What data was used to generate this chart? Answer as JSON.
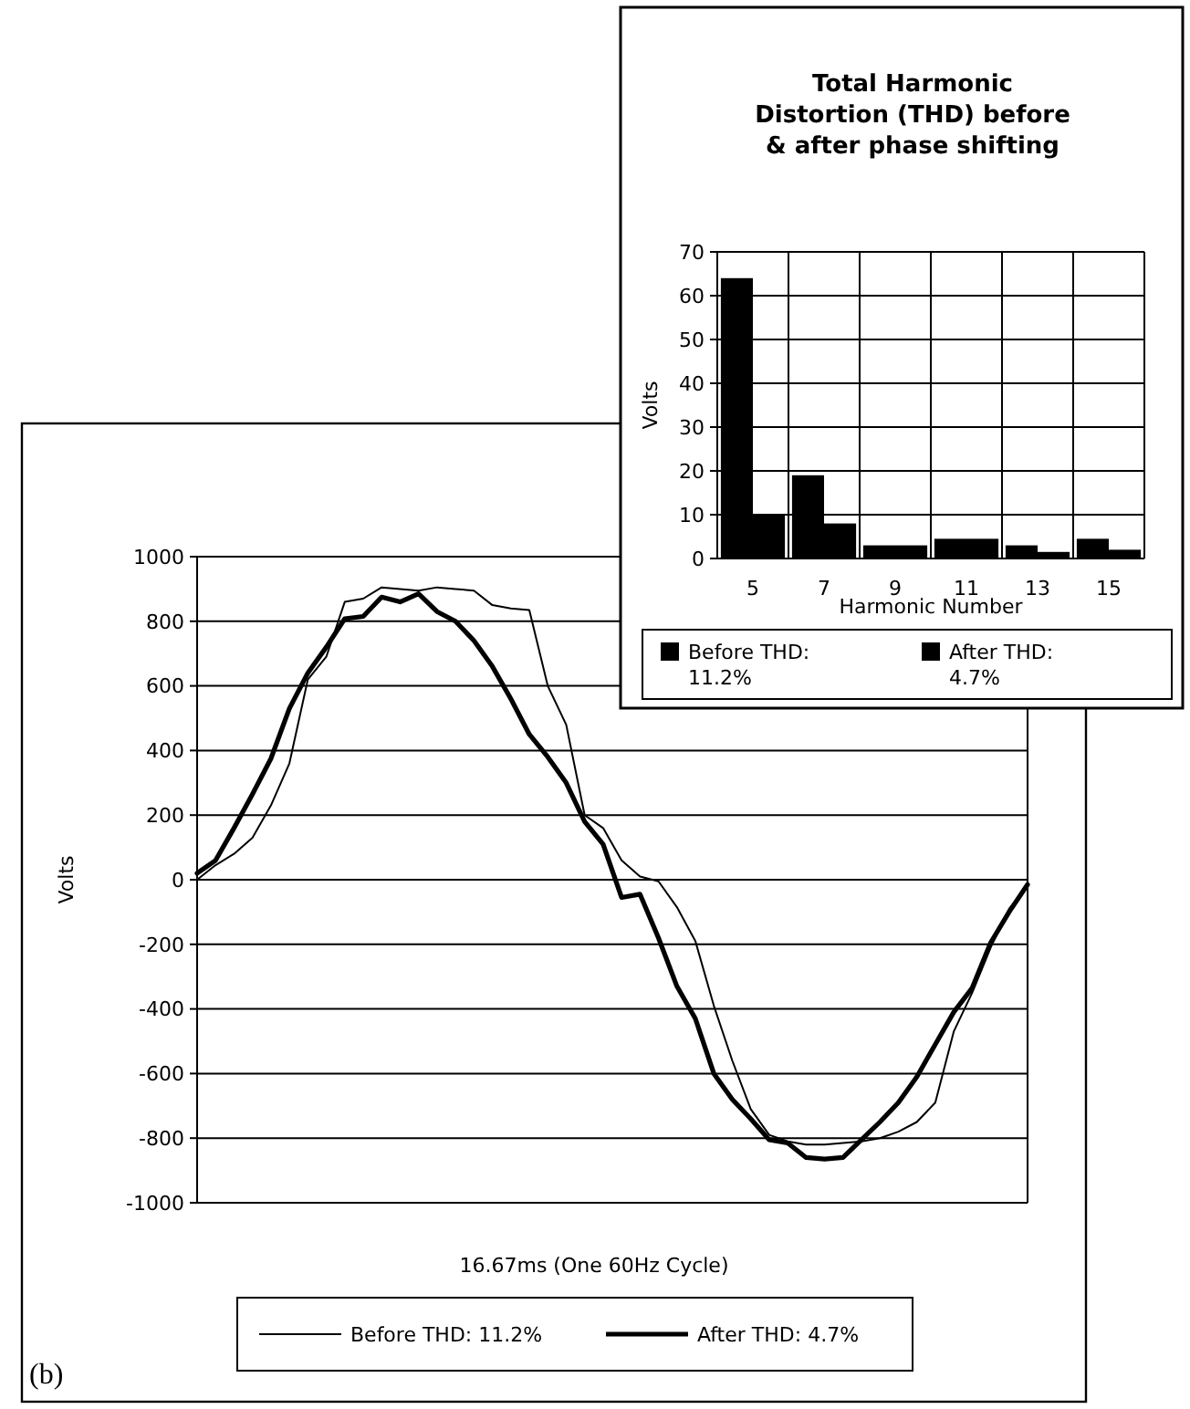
{
  "chart_data": [
    {
      "type": "line",
      "xlabel": "16.67ms (One 60Hz Cycle)",
      "ylabel": "Volts",
      "categories": [
        null,
        null,
        null,
        null,
        null,
        null,
        null,
        null,
        null,
        null,
        null,
        null,
        null,
        null,
        null,
        null,
        null,
        null,
        null,
        null,
        null,
        null,
        null,
        null,
        null,
        null,
        null,
        null,
        null,
        null,
        null,
        null,
        null,
        null,
        null,
        null,
        null,
        null,
        null,
        null,
        null,
        null,
        null,
        null,
        null,
        null
      ],
      "series": [
        {
          "name": "Before THD: 11.2%",
          "color": "#000000",
          "line_style": "solid",
          "values": [
            0,
            45,
            80,
            130,
            230,
            360,
            620,
            690,
            860,
            870,
            905,
            900,
            895,
            905,
            900,
            895,
            850,
            840,
            835,
            600,
            480,
            200,
            160,
            60,
            10,
            -5,
            -85,
            -190,
            -390,
            -560,
            -710,
            -790,
            -810,
            -820,
            -820,
            -815,
            -810,
            -800,
            -780,
            -750,
            -690,
            -470,
            -350,
            -210,
            -90,
            -20
          ]
        },
        {
          "name": "After THD: 4.7%",
          "color": "#000000",
          "line_style": "solid",
          "values": [
            20,
            60,
            160,
            265,
            375,
            530,
            640,
            720,
            808,
            815,
            875,
            860,
            885,
            830,
            800,
            740,
            660,
            560,
            450,
            380,
            300,
            180,
            110,
            -55,
            -45,
            -180,
            -330,
            -430,
            -600,
            -680,
            -740,
            -805,
            -815,
            -860,
            -865,
            -860,
            -805,
            -750,
            -690,
            -610,
            -510,
            -410,
            -335,
            -195,
            -100,
            -15
          ]
        }
      ],
      "ylim": [
        -1000,
        1000
      ],
      "yticks": [
        -1000,
        -800,
        -600,
        -400,
        -200,
        0,
        200,
        400,
        600,
        800,
        1000
      ],
      "grid": "y",
      "legend": "bottom",
      "marker": "none",
      "annotations": [
        "(b)"
      ]
    },
    {
      "type": "bar",
      "title": "Total Harmonic Distortion (THD) before & after phase shifting",
      "xlabel": "Harmonic Number",
      "ylabel": "Volts",
      "categories": [
        "5",
        "7",
        "9",
        "11",
        "13",
        "15"
      ],
      "series": [
        {
          "name": "Before THD: 11.2%",
          "color": "#000000",
          "values": [
            64,
            19,
            3,
            4.5,
            3,
            4.5
          ]
        },
        {
          "name": "After THD: 4.7%",
          "color": "#000000",
          "values": [
            10,
            8,
            3,
            4.5,
            1.5,
            2
          ]
        }
      ],
      "ylim": [
        0,
        70
      ],
      "yticks": [
        0,
        10,
        20,
        30,
        40,
        50,
        60,
        70
      ],
      "grid": true,
      "legend": "bottom"
    }
  ]
}
